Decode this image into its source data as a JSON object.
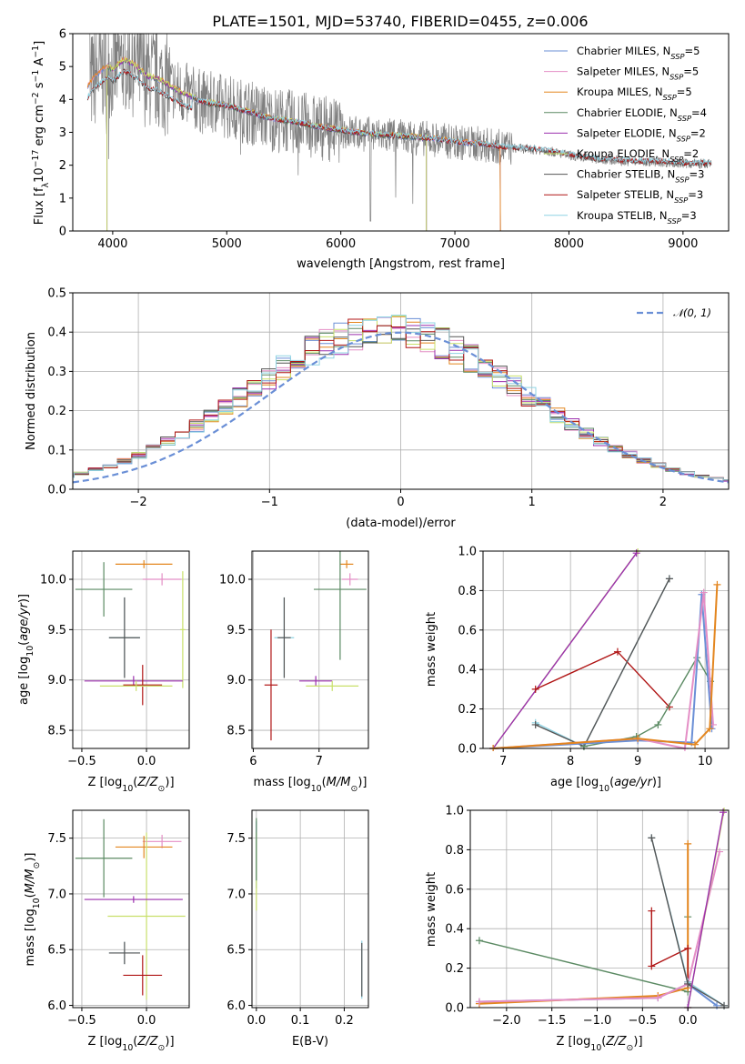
{
  "title": "PLATE=1501, MJD=53740, FIBERID=0455, z=0.006",
  "colors": {
    "Chabrier MILES": "#6a8fd6",
    "Salpeter MILES": "#e48fc6",
    "Kroupa MILES": "#e3861f",
    "Chabrier ELODIE": "#5b8a63",
    "Salpeter ELODIE": "#9b2fae",
    "Kroupa ELODIE": "#c8e06a",
    "Chabrier STELIB": "#555555",
    "Salpeter STELIB": "#b01515",
    "Kroupa STELIB": "#8fd3e3",
    "data": "#808080",
    "normal": "#6a8fd6"
  },
  "chart_data": [
    {
      "type": "line",
      "xlabel": "wavelength [Angstrom, rest frame]",
      "ylabel": "Flux [f_λ 10^-17 erg cm^-2 s^-1 A^-1]",
      "xlim": [
        3650,
        9400
      ],
      "ylim": [
        0,
        6
      ],
      "xticks": [
        4000,
        5000,
        6000,
        7000,
        8000,
        9000
      ],
      "yticks": [
        0,
        1,
        2,
        3,
        4,
        5,
        6
      ],
      "legend_position": "top-right",
      "legend": [
        {
          "series": "Chabrier MILES",
          "label": "Chabrier MILES, N",
          "sub": "SSP",
          "suffix": "=5"
        },
        {
          "series": "Salpeter MILES",
          "label": "Salpeter MILES, N",
          "sub": "SSP",
          "suffix": "=5"
        },
        {
          "series": "Kroupa MILES",
          "label": "Kroupa MILES, N",
          "sub": "SSP",
          "suffix": "=5"
        },
        {
          "series": "Chabrier ELODIE",
          "label": "Chabrier ELODIE, N",
          "sub": "SSP",
          "suffix": "=4"
        },
        {
          "series": "Salpeter ELODIE",
          "label": "Salpeter ELODIE, N",
          "sub": "SSP",
          "suffix": "=2"
        },
        {
          "series": "Kroupa ELODIE",
          "label": "Kroupa ELODIE, N",
          "sub": "SSP",
          "suffix": "=2"
        },
        {
          "series": "Chabrier STELIB",
          "label": "Chabrier STELIB, N",
          "sub": "SSP",
          "suffix": "=3"
        },
        {
          "series": "Salpeter STELIB",
          "label": "Salpeter STELIB, N",
          "sub": "SSP",
          "suffix": "=3"
        },
        {
          "series": "Kroupa STELIB",
          "label": "Kroupa STELIB, N",
          "sub": "SSP",
          "suffix": "=3"
        }
      ],
      "continuum": {
        "x": [
          3780,
          3850,
          3950,
          4000,
          4100,
          4200,
          4300,
          4400,
          4600,
          4800,
          5000,
          5200,
          5400,
          5600,
          5800,
          6000,
          6200,
          6400,
          6600,
          6800,
          7000,
          7200,
          7400,
          7600,
          7800,
          8000,
          8200,
          8400,
          8600,
          8800,
          9000,
          9200,
          9400
        ],
        "y": [
          4.4,
          4.7,
          5.0,
          4.9,
          5.2,
          5.0,
          4.7,
          4.6,
          4.2,
          3.9,
          3.8,
          3.6,
          3.4,
          3.3,
          3.15,
          3.05,
          2.95,
          2.9,
          2.85,
          2.8,
          2.7,
          2.65,
          2.55,
          2.5,
          2.45,
          2.3,
          2.2,
          2.15,
          2.1,
          2.1,
          2.05,
          2.05,
          2.0
        ]
      }
    },
    {
      "type": "line",
      "xlabel": "(data-model)/error",
      "ylabel": "Normed distribution",
      "xlim": [
        -2.5,
        2.5
      ],
      "ylim": [
        0,
        0.5
      ],
      "xticks": [
        -2,
        -1,
        0,
        1,
        2
      ],
      "yticks": [
        0.0,
        0.1,
        0.2,
        0.3,
        0.4,
        0.5
      ],
      "grid": true,
      "legend_position": "top-right",
      "legend": [
        "𝒩(0, 1)"
      ]
    },
    {
      "type": "scatter",
      "panel": "age-vs-Z",
      "xlabel": "Z [log10(Z/Z⊙)]",
      "ylabel": "age  [log10(age/yr)]",
      "xlim": [
        -0.57,
        0.33
      ],
      "ylim": [
        8.32,
        10.28
      ],
      "xticks": [
        -0.5,
        0.0
      ],
      "yticks": [
        8.5,
        9.0,
        9.5,
        10.0
      ],
      "grid": true,
      "points": [
        {
          "series": "Kroupa MILES",
          "x": -0.02,
          "y": 10.15,
          "xerr": 0.22,
          "yerr": 0.04
        },
        {
          "series": "Salpeter MILES",
          "x": 0.12,
          "y": 10.0,
          "xerr": 0.15,
          "yerr": 0.06
        },
        {
          "series": "Chabrier ELODIE",
          "x": -0.33,
          "y": 9.9,
          "xerr": 0.22,
          "yerr": 0.27
        },
        {
          "series": "Kroupa ELODIE",
          "x": 0.28,
          "y": 9.5,
          "xerr": 0.02,
          "yerr": 0.58
        },
        {
          "series": "Kroupa STELIB",
          "x": -0.17,
          "y": 9.42,
          "xerr": 0.12,
          "yerr": 0.4
        },
        {
          "series": "Chabrier STELIB",
          "x": -0.17,
          "y": 9.42,
          "xerr": 0.12,
          "yerr": 0.4
        },
        {
          "series": "Salpeter ELODIE",
          "x": -0.1,
          "y": 8.99,
          "xerr": 0.38,
          "yerr": 0.05
        },
        {
          "series": "Salpeter STELIB",
          "x": -0.03,
          "y": 8.95,
          "xerr": 0.15,
          "yerr": 0.2
        },
        {
          "series": "Kroupa ELODIE",
          "x": -0.08,
          "y": 8.94,
          "xerr": 0.28,
          "yerr": 0.05
        }
      ]
    },
    {
      "type": "scatter",
      "panel": "age-vs-mass",
      "xlabel": "mass [log10(M/M⊙)]",
      "ylabel": "",
      "xlim": [
        5.98,
        7.75
      ],
      "ylim": [
        8.32,
        10.28
      ],
      "xticks": [
        6,
        7
      ],
      "yticks": [
        8.5,
        9.0,
        9.5,
        10.0
      ],
      "grid": true,
      "points": [
        {
          "series": "Kroupa MILES",
          "x": 7.42,
          "y": 10.15,
          "xerr": 0.1,
          "yerr": 0.04
        },
        {
          "series": "Salpeter MILES",
          "x": 7.47,
          "y": 10.0,
          "xerr": 0.12,
          "yerr": 0.06
        },
        {
          "series": "Chabrier ELODIE",
          "x": 7.32,
          "y": 9.9,
          "xerr": 0.4,
          "yerr": 0.7
        },
        {
          "series": "Kroupa STELIB",
          "x": 6.47,
          "y": 9.42,
          "xerr": 0.15,
          "yerr": 0.4
        },
        {
          "series": "Chabrier STELIB",
          "x": 6.47,
          "y": 9.42,
          "xerr": 0.1,
          "yerr": 0.4
        },
        {
          "series": "Salpeter ELODIE",
          "x": 6.95,
          "y": 8.99,
          "xerr": 0.25,
          "yerr": 0.05
        },
        {
          "series": "Salpeter STELIB",
          "x": 6.27,
          "y": 8.95,
          "xerr": 0.1,
          "yerr": 0.55
        },
        {
          "series": "Kroupa ELODIE",
          "x": 7.2,
          "y": 8.94,
          "xerr": 0.4,
          "yerr": 0.05
        }
      ]
    },
    {
      "type": "line",
      "panel": "weight-vs-age",
      "xlabel": "age  [log10(age/yr)]",
      "ylabel": "mass weight",
      "xlim": [
        6.7,
        10.35
      ],
      "ylim": [
        0,
        1
      ],
      "xticks": [
        7,
        8,
        9,
        10
      ],
      "yticks": [
        0.0,
        0.2,
        0.4,
        0.6,
        0.8,
        1.0
      ],
      "grid": true,
      "series": [
        {
          "name": "Kroupa ELODIE",
          "x": [
            6.85,
            9.0
          ],
          "y": [
            0.0,
            1.0
          ]
        },
        {
          "name": "Salpeter ELODIE",
          "x": [
            6.85,
            8.98
          ],
          "y": [
            0.0,
            0.99
          ]
        },
        {
          "name": "Salpeter STELIB",
          "x": [
            7.48,
            8.7,
            9.47
          ],
          "y": [
            0.3,
            0.49,
            0.21
          ]
        },
        {
          "name": "Kroupa STELIB",
          "x": [
            7.48,
            8.2,
            9.47
          ],
          "y": [
            0.13,
            0.01,
            0.86
          ]
        },
        {
          "name": "Chabrier STELIB",
          "x": [
            7.48,
            8.2,
            9.47
          ],
          "y": [
            0.12,
            0.01,
            0.86
          ]
        },
        {
          "name": "Chabrier ELODIE",
          "x": [
            8.2,
            8.98,
            9.3,
            9.88,
            10.08
          ],
          "y": [
            0.01,
            0.06,
            0.12,
            0.46,
            0.34
          ]
        },
        {
          "name": "Chabrier MILES",
          "x": [
            6.85,
            9.0,
            9.8,
            9.95,
            10.1
          ],
          "y": [
            0.0,
            0.04,
            0.03,
            0.78,
            0.1
          ]
        },
        {
          "name": "Salpeter MILES",
          "x": [
            6.85,
            9.0,
            9.7,
            9.98,
            10.12
          ],
          "y": [
            0.0,
            0.05,
            0.0,
            0.79,
            0.12
          ]
        },
        {
          "name": "Kroupa MILES",
          "x": [
            6.85,
            9.0,
            9.85,
            10.07,
            10.18
          ],
          "y": [
            0.0,
            0.05,
            0.02,
            0.1,
            0.83
          ]
        }
      ]
    },
    {
      "type": "scatter",
      "panel": "mass-vs-Z",
      "xlabel": "Z [log10(Z/Z⊙)]",
      "ylabel": "mass [log10(M/M⊙)]",
      "xlim": [
        -0.57,
        0.33
      ],
      "ylim": [
        5.98,
        7.75
      ],
      "xticks": [
        -0.5,
        0.0
      ],
      "yticks": [
        6.0,
        6.5,
        7.0,
        7.5
      ],
      "grid": true,
      "points": [
        {
          "series": "Salpeter MILES",
          "x": 0.12,
          "y": 7.47,
          "xerr": 0.15,
          "yerr": 0.06
        },
        {
          "series": "Kroupa MILES",
          "x": -0.02,
          "y": 7.42,
          "xerr": 0.22,
          "yerr": 0.1
        },
        {
          "series": "Chabrier ELODIE",
          "x": -0.33,
          "y": 7.32,
          "xerr": 0.22,
          "yerr": 0.35
        },
        {
          "series": "Kroupa ELODIE",
          "x": 0.0,
          "y": 6.8,
          "xerr": 0.3,
          "yerr": 0.75
        },
        {
          "series": "Salpeter ELODIE",
          "x": -0.1,
          "y": 6.95,
          "xerr": 0.38,
          "yerr": 0.03
        },
        {
          "series": "Kroupa STELIB",
          "x": -0.17,
          "y": 6.47,
          "xerr": 0.12,
          "yerr": 0.1
        },
        {
          "series": "Chabrier STELIB",
          "x": -0.17,
          "y": 6.47,
          "xerr": 0.12,
          "yerr": 0.1
        },
        {
          "series": "Salpeter STELIB",
          "x": -0.03,
          "y": 6.27,
          "xerr": 0.15,
          "yerr": 0.18
        }
      ]
    },
    {
      "type": "scatter",
      "panel": "mass-vs-EBV",
      "xlabel": "E(B-V)",
      "ylabel": "",
      "xlim": [
        -0.01,
        0.255
      ],
      "ylim": [
        5.98,
        7.75
      ],
      "xticks": [
        0.0,
        0.1,
        0.2
      ],
      "yticks": [
        6.0,
        6.5,
        7.0,
        7.5
      ],
      "grid": true,
      "points": [
        {
          "series": "Chabrier MILES",
          "x": 0.0,
          "y": 7.35,
          "xerr": 0,
          "yerr": 0.3
        },
        {
          "series": "Kroupa ELODIE",
          "x": 0.0,
          "y": 7.2,
          "xerr": 0,
          "yerr": 0.35
        },
        {
          "series": "Chabrier ELODIE",
          "x": 0.0,
          "y": 7.4,
          "xerr": 0,
          "yerr": 0.28
        },
        {
          "series": "Kroupa STELIB",
          "x": 0.24,
          "y": 6.32,
          "xerr": 0,
          "yerr": 0.26
        },
        {
          "series": "Chabrier STELIB",
          "x": 0.24,
          "y": 6.32,
          "xerr": 0,
          "yerr": 0.24
        }
      ]
    },
    {
      "type": "line",
      "panel": "weight-vs-Z",
      "xlabel": "Z [log10(Z/Z⊙)]",
      "ylabel": "mass weight",
      "xlim": [
        -2.4,
        0.45
      ],
      "ylim": [
        0,
        1
      ],
      "xticks": [
        -2.0,
        -1.5,
        -1.0,
        -0.5,
        0.0
      ],
      "yticks": [
        0.0,
        0.2,
        0.4,
        0.6,
        0.8,
        1.0
      ],
      "grid": true,
      "series": [
        {
          "name": "Chabrier ELODIE",
          "x": [
            -2.3,
            0.0,
            0.0
          ],
          "y": [
            0.34,
            0.08,
            0.46
          ]
        },
        {
          "name": "Chabrier MILES",
          "x": [
            -2.3,
            -0.33,
            0.0,
            0.32
          ],
          "y": [
            0.03,
            0.05,
            0.12,
            0.01
          ]
        },
        {
          "name": "Kroupa MILES",
          "x": [
            -2.3,
            -0.33,
            0.0,
            0.0
          ],
          "y": [
            0.02,
            0.06,
            0.1,
            0.83
          ]
        },
        {
          "name": "Salpeter MILES",
          "x": [
            -2.3,
            -0.33,
            0.0,
            0.35
          ],
          "y": [
            0.03,
            0.05,
            0.12,
            0.79
          ]
        },
        {
          "name": "Salpeter STELIB",
          "x": [
            -0.4,
            -0.4,
            0.0,
            0.0
          ],
          "y": [
            0.49,
            0.21,
            0.3,
            0.13
          ]
        },
        {
          "name": "Kroupa STELIB",
          "x": [
            -0.4,
            0.0,
            0.4
          ],
          "y": [
            0.86,
            0.13,
            0.01
          ]
        },
        {
          "name": "Chabrier STELIB",
          "x": [
            -0.4,
            0.0,
            0.4
          ],
          "y": [
            0.86,
            0.12,
            0.01
          ]
        },
        {
          "name": "Kroupa ELODIE",
          "x": [
            0.0,
            0.4
          ],
          "y": [
            0.0,
            1.0
          ]
        },
        {
          "name": "Salpeter ELODIE",
          "x": [
            0.0,
            0.39
          ],
          "y": [
            0.0,
            0.99
          ]
        }
      ]
    }
  ]
}
